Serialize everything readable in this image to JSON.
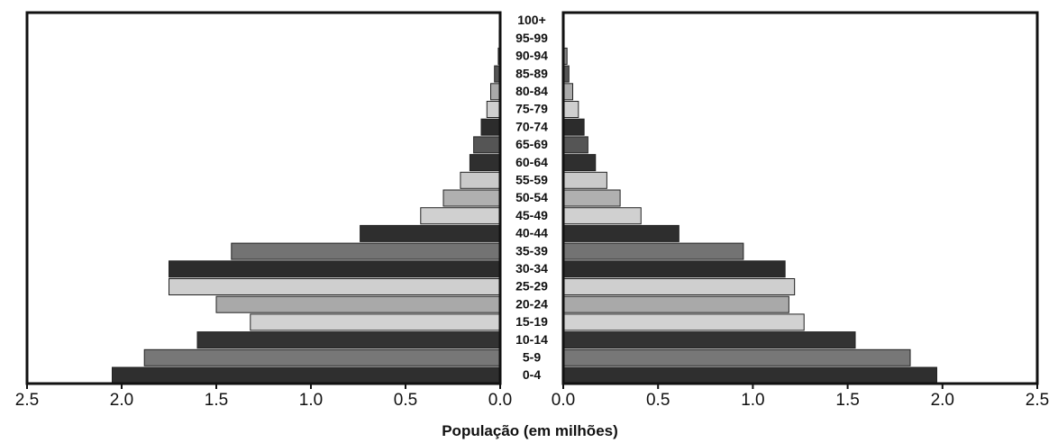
{
  "chart_data": {
    "type": "bar",
    "orientation": "horizontal",
    "subtype": "population-pyramid",
    "title": "",
    "xlabel": "População (em milhões)",
    "ylabel": "",
    "xlim": [
      0,
      2.5
    ],
    "x_ticks": [
      "0.0",
      "0.5",
      "1.0",
      "1.5",
      "2.0",
      "2.5"
    ],
    "categories": [
      "0-4",
      "5-9",
      "10-14",
      "15-19",
      "20-24",
      "25-29",
      "30-34",
      "35-39",
      "40-44",
      "45-49",
      "50-54",
      "55-59",
      "60-64",
      "65-69",
      "70-74",
      "75-79",
      "80-84",
      "85-89",
      "90-94",
      "95-99",
      "100+"
    ],
    "series": [
      {
        "side": "left",
        "values": [
          2.05,
          1.88,
          1.6,
          1.32,
          1.5,
          1.75,
          1.75,
          1.42,
          0.74,
          0.42,
          0.3,
          0.21,
          0.16,
          0.14,
          0.1,
          0.07,
          0.05,
          0.03,
          0.01,
          0.005,
          0.0
        ]
      },
      {
        "side": "right",
        "values": [
          1.97,
          1.83,
          1.54,
          1.27,
          1.19,
          1.22,
          1.17,
          0.95,
          0.61,
          0.41,
          0.3,
          0.23,
          0.17,
          0.13,
          0.11,
          0.08,
          0.05,
          0.03,
          0.02,
          0.005,
          0.0
        ]
      }
    ],
    "bar_colors": [
      "#2f2f2f",
      "#777777",
      "#333333",
      "#d2d2d2",
      "#a9a9a9",
      "#cfcfcf",
      "#2c2c2c",
      "#737373",
      "#2e2e2e",
      "#d0d0d0",
      "#b0b0b0",
      "#cacaca",
      "#2f2f2f",
      "#555555",
      "#2c2c2c",
      "#cfcfcf",
      "#aaaaaa",
      "#555555",
      "#888888",
      "#cccccc",
      "#cccccc"
    ],
    "grid": false
  }
}
